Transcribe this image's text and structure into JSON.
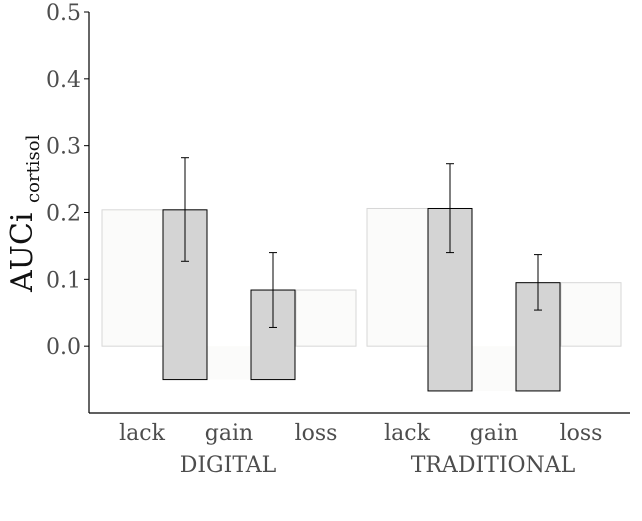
{
  "chart_data": {
    "type": "bar",
    "ylabel": {
      "main": "AUCi",
      "subscript": "cortisol"
    },
    "xlabel": "",
    "ylim": [
      -0.1,
      0.5
    ],
    "yticks": [
      0.0,
      0.1,
      0.2,
      0.3,
      0.4,
      0.5
    ],
    "ytick_labels": [
      "0.0",
      "0.1",
      "0.2",
      "0.3",
      "0.4",
      "0.5"
    ],
    "groups": [
      {
        "name": "DIGITAL",
        "categories": [
          "lack",
          "gain",
          "loss"
        ],
        "values": [
          0.0,
          0.204,
          0.084
        ],
        "background_range": [
          0.0,
          0.204
        ],
        "bars": [
          {
            "category": "lack",
            "value": -0.05,
            "top": 0.204,
            "error": [
              0.127,
              0.282
            ]
          },
          {
            "category": "gain",
            "value": 0.084,
            "bottom": -0.05,
            "error": [
              0.028,
              0.14
            ]
          }
        ]
      },
      {
        "name": "TRADITIONAL",
        "categories": [
          "lack",
          "gain",
          "loss"
        ],
        "values": [
          0.0,
          0.206,
          0.095
        ],
        "background_range": [
          0.0,
          0.206
        ],
        "bars": [
          {
            "category": "lack",
            "value": -0.067,
            "top": 0.206,
            "error": [
              0.14,
              0.273
            ]
          },
          {
            "category": "gain",
            "value": 0.095,
            "bottom": -0.067,
            "error": [
              0.054,
              0.137
            ]
          }
        ]
      }
    ],
    "colors": {
      "bar_fill": "#d4d4d4",
      "bar_stroke": "#000000",
      "background_fill": "#fbfbfa",
      "background_stroke": "#d7d7d7",
      "axis": "#000000",
      "tick_text": "#4d4d4d"
    }
  }
}
